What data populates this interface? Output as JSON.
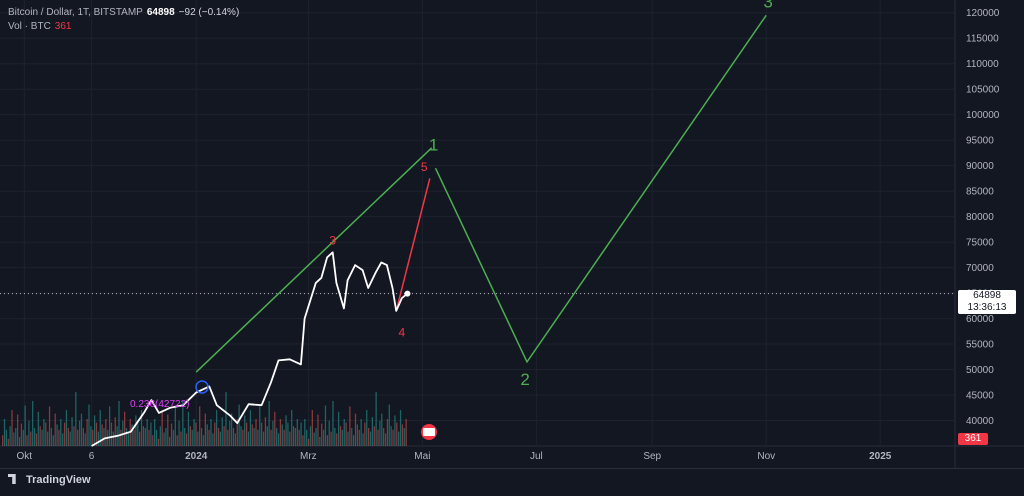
{
  "legend": {
    "symbol": "Bitcoin / Dollar, 1T, BITSTAMP",
    "price": "64898",
    "change": "−92 (−0.14%)",
    "volume_label": "Vol · BTC",
    "volume_value": "361"
  },
  "price_tag": {
    "price": "64898",
    "countdown": "13:36:13"
  },
  "volume_tag": "361",
  "brand": "TradingView",
  "colors": {
    "background": "#131722",
    "price_line": "#ffffff",
    "projection_green": "#4caf50",
    "projection_red": "#f23645",
    "volume_up": "#26a69a",
    "volume_down": "#ef5350"
  },
  "chart_data": {
    "type": "line",
    "yaxis": {
      "ticks": [
        40000,
        45000,
        50000,
        55000,
        60000,
        65000,
        70000,
        75000,
        80000,
        85000,
        90000,
        95000,
        100000,
        105000,
        110000,
        115000,
        120000
      ],
      "range": [
        35000,
        122500
      ]
    },
    "xaxis": {
      "tick_labels": [
        "Okt",
        "6",
        "2024",
        "Mrz",
        "Mai",
        "Jul",
        "Sep",
        "Nov",
        "2025"
      ],
      "tick_dates": [
        "2023-10-01",
        "2023-11-06",
        "2024-01-01",
        "2024-03-01",
        "2024-05-01",
        "2024-07-01",
        "2024-09-01",
        "2024-11-01",
        "2025-01-01"
      ],
      "range": [
        "2023-09-18",
        "2025-02-10"
      ]
    },
    "series": [
      {
        "values": [
          [
            "2023-11-06",
            35000
          ],
          [
            "2023-11-13",
            36500
          ],
          [
            "2023-11-20",
            37000
          ],
          [
            "2023-11-27",
            37800
          ],
          [
            "2023-12-04",
            41500
          ],
          [
            "2023-12-08",
            44000
          ],
          [
            "2023-12-12",
            41500
          ],
          [
            "2023-12-18",
            42500
          ],
          [
            "2023-12-25",
            43000
          ],
          [
            "2024-01-01",
            45500
          ],
          [
            "2024-01-08",
            46700
          ],
          [
            "2024-01-12",
            43000
          ],
          [
            "2024-01-19",
            41000
          ],
          [
            "2024-01-23",
            39500
          ],
          [
            "2024-01-29",
            43200
          ],
          [
            "2024-02-05",
            43000
          ],
          [
            "2024-02-10",
            47500
          ],
          [
            "2024-02-14",
            51800
          ],
          [
            "2024-02-20",
            52000
          ],
          [
            "2024-02-26",
            51000
          ],
          [
            "2024-02-28",
            60000
          ],
          [
            "2024-03-05",
            67000
          ],
          [
            "2024-03-08",
            68000
          ],
          [
            "2024-03-11",
            72000
          ],
          [
            "2024-03-14",
            73000
          ],
          [
            "2024-03-16",
            67000
          ],
          [
            "2024-03-20",
            62000
          ],
          [
            "2024-03-22",
            67500
          ],
          [
            "2024-03-26",
            70500
          ],
          [
            "2024-03-30",
            69500
          ],
          [
            "2024-04-02",
            66000
          ],
          [
            "2024-04-06",
            69000
          ],
          [
            "2024-04-09",
            71000
          ],
          [
            "2024-04-12",
            70500
          ],
          [
            "2024-04-15",
            66000
          ],
          [
            "2024-04-17",
            61500
          ],
          [
            "2024-04-20",
            64000
          ],
          [
            "2024-04-23",
            64898
          ]
        ]
      }
    ],
    "volume": {
      "values": [
        12,
        30,
        18,
        8,
        22,
        40,
        15,
        20,
        35,
        10,
        25,
        18,
        45,
        12,
        28,
        16,
        50,
        20,
        14,
        38,
        22,
        18,
        30,
        26,
        16,
        44,
        20,
        12,
        36,
        24,
        18,
        30,
        14,
        26,
        40,
        20,
        16,
        32,
        22,
        60,
        18,
        28,
        36,
        20,
        14,
        30,
        46,
        22,
        18,
        34,
        26,
        16,
        40,
        24,
        20,
        30,
        18,
        44,
        26,
        16,
        32,
        22,
        50,
        18,
        28,
        38,
        20,
        14,
        30,
        24,
        18,
        34,
        26,
        16,
        40,
        22,
        20,
        30,
        18,
        26,
        12,
        30,
        18,
        8,
        22,
        40,
        15,
        20,
        35,
        10,
        25,
        18,
        45,
        12,
        28,
        16,
        50,
        20,
        14,
        38,
        22,
        18,
        30,
        26,
        16,
        44,
        20,
        12,
        36,
        24,
        18,
        30,
        14,
        26,
        40,
        20,
        16,
        32,
        22,
        60,
        18,
        28,
        36,
        20,
        14,
        30,
        46,
        22,
        18,
        34,
        26,
        16,
        40,
        24,
        20,
        30,
        18,
        44,
        26,
        16,
        32,
        22,
        50,
        18,
        28,
        38,
        20,
        14,
        30,
        24,
        18,
        34,
        26,
        16,
        40,
        22,
        20,
        30,
        18,
        26,
        12,
        30,
        18,
        8,
        22,
        40,
        15,
        20,
        35,
        10,
        25,
        18,
        45,
        12,
        28,
        16,
        50,
        20,
        14,
        38,
        22,
        18,
        30,
        26,
        16,
        44,
        20,
        12,
        36,
        24,
        18,
        30,
        14,
        26,
        40,
        20,
        16,
        32,
        22,
        60,
        18,
        28,
        36,
        20,
        14,
        30,
        46,
        22,
        18,
        34,
        26,
        16,
        40,
        24,
        20,
        30
      ],
      "scale_max": 100
    },
    "annotations": {
      "green_channel_line": [
        [
          "2024-01-01",
          49500
        ],
        [
          "2024-05-06",
          93500
        ]
      ],
      "red_projection": [
        [
          "2024-04-17",
          61500
        ],
        [
          "2024-05-05",
          87500
        ]
      ],
      "green_projection": [
        [
          "2024-05-08",
          89500
        ],
        [
          "2024-06-26",
          51500
        ],
        [
          "2024-11-01",
          119500
        ]
      ],
      "labels": [
        {
          "text": "1",
          "x": "2024-05-07",
          "y": 93000,
          "color": "green"
        },
        {
          "text": "2",
          "x": "2024-06-25",
          "y": 47000,
          "color": "green"
        },
        {
          "text": "3",
          "x": "2024-11-02",
          "y": 121000,
          "color": "green"
        },
        {
          "text": "5",
          "x": "2024-05-02",
          "y": 89000,
          "color": "red"
        },
        {
          "text": "4",
          "x": "2024-04-20",
          "y": 56500,
          "color": "red"
        },
        {
          "text": "3",
          "x": "2024-03-14",
          "y": 74500,
          "color": "red"
        }
      ],
      "price_line": 64898,
      "fib_label": "0.236(42722)"
    }
  }
}
